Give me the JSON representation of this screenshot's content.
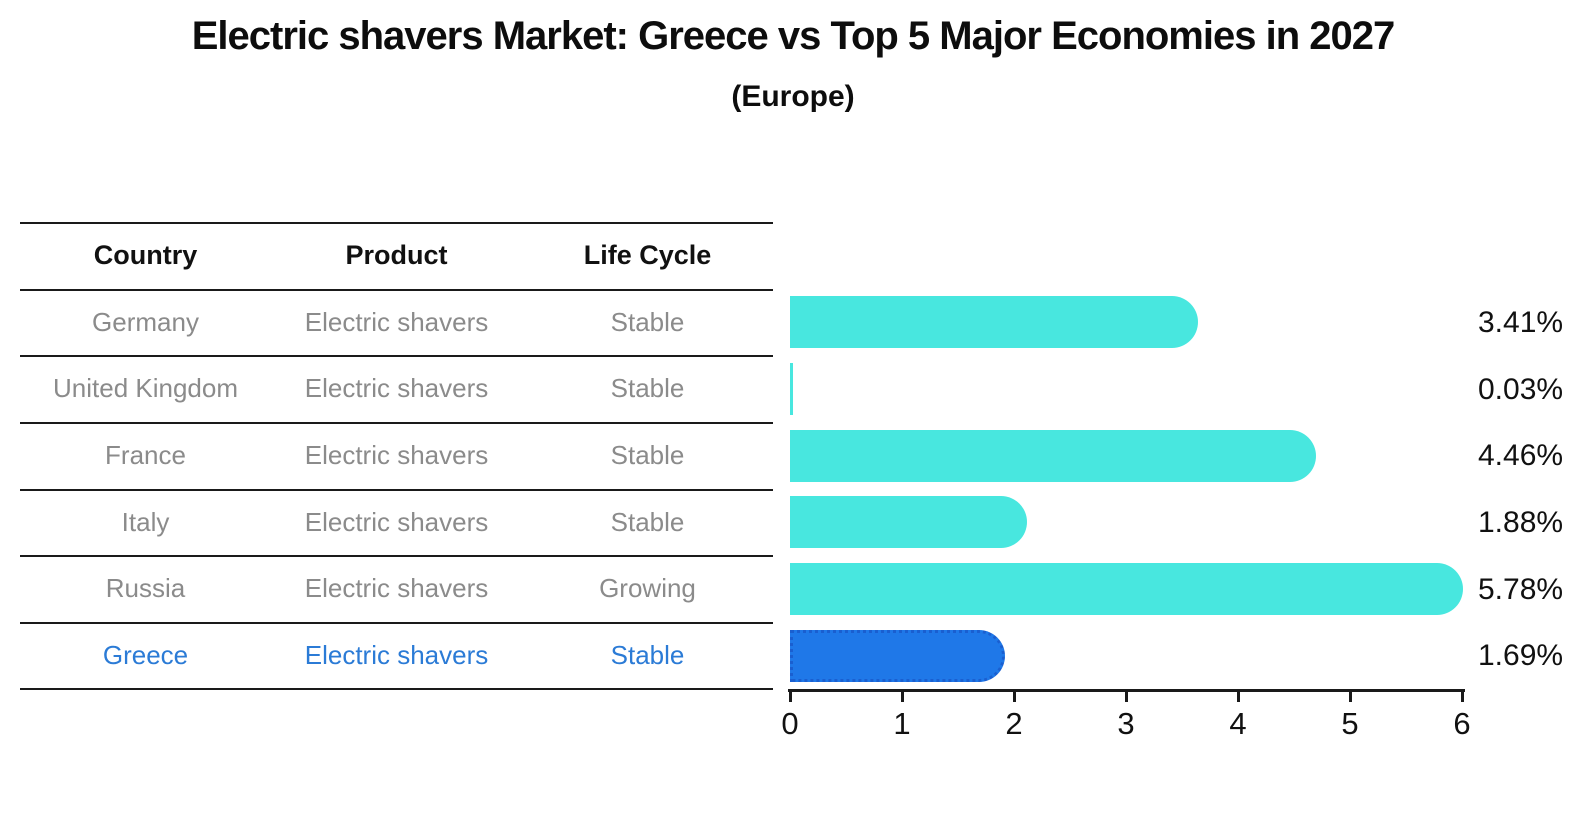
{
  "title": "Electric shavers Market: Greece vs Top 5 Major Economies in 2027",
  "subtitle": "(Europe)",
  "table": {
    "headers": [
      "Country",
      "Product",
      "Life Cycle"
    ],
    "rows": [
      {
        "country": "Germany",
        "product": "Electric shavers",
        "life_cycle": "Stable",
        "highlight": false
      },
      {
        "country": "United Kingdom",
        "product": "Electric shavers",
        "life_cycle": "Stable",
        "highlight": false
      },
      {
        "country": "France",
        "product": "Electric shavers",
        "life_cycle": "Stable",
        "highlight": false
      },
      {
        "country": "Italy",
        "product": "Electric shavers",
        "life_cycle": "Stable",
        "highlight": false
      },
      {
        "country": "Russia",
        "product": "Electric shavers",
        "life_cycle": "Growing",
        "highlight": false
      },
      {
        "country": "Greece",
        "product": "Electric shavers",
        "life_cycle": "Stable",
        "highlight": true
      }
    ]
  },
  "chart_data": {
    "type": "bar",
    "orientation": "horizontal",
    "title": "Electric shavers Market: Greece vs Top 5 Major Economies in 2027 (Europe)",
    "categories": [
      "Germany",
      "United Kingdom",
      "France",
      "Italy",
      "Russia",
      "Greece"
    ],
    "values": [
      3.41,
      0.03,
      4.46,
      1.88,
      5.78,
      1.69
    ],
    "value_labels": [
      "3.41%",
      "0.03%",
      "4.46%",
      "1.88%",
      "5.78%",
      "1.69%"
    ],
    "unit": "%",
    "xlim": [
      0,
      6
    ],
    "x_ticks": [
      "0",
      "1",
      "2",
      "3",
      "4",
      "5",
      "6"
    ],
    "grid": false,
    "legend": false,
    "bar_color": "#48E7DF",
    "highlight_index": 5,
    "highlight_color": "#1F78E8",
    "highlight_border_color": "#1A5FD0"
  },
  "colors": {
    "header_text": "#111111",
    "row_text": "#8B8B8B",
    "highlight_text": "#2B7BD6",
    "value_label_text": "#111111",
    "axis": "#1A1A1A"
  }
}
